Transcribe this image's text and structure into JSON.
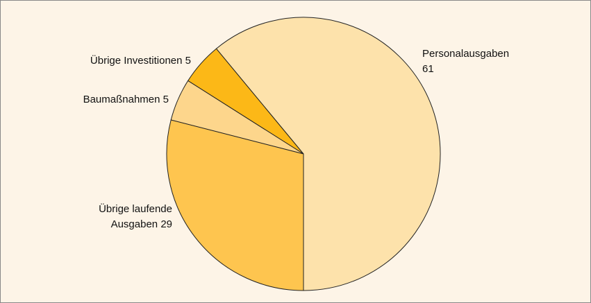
{
  "chart_data": {
    "type": "pie",
    "categories": [
      "Personalausgaben",
      "Übrige Investitionen",
      "Baumaßnahmen",
      "Übrige laufende Ausgaben"
    ],
    "values": [
      61,
      5,
      5,
      29
    ],
    "colors": [
      "#fde2ab",
      "#fcb817",
      "#fdd68c",
      "#fec54f"
    ]
  }
}
